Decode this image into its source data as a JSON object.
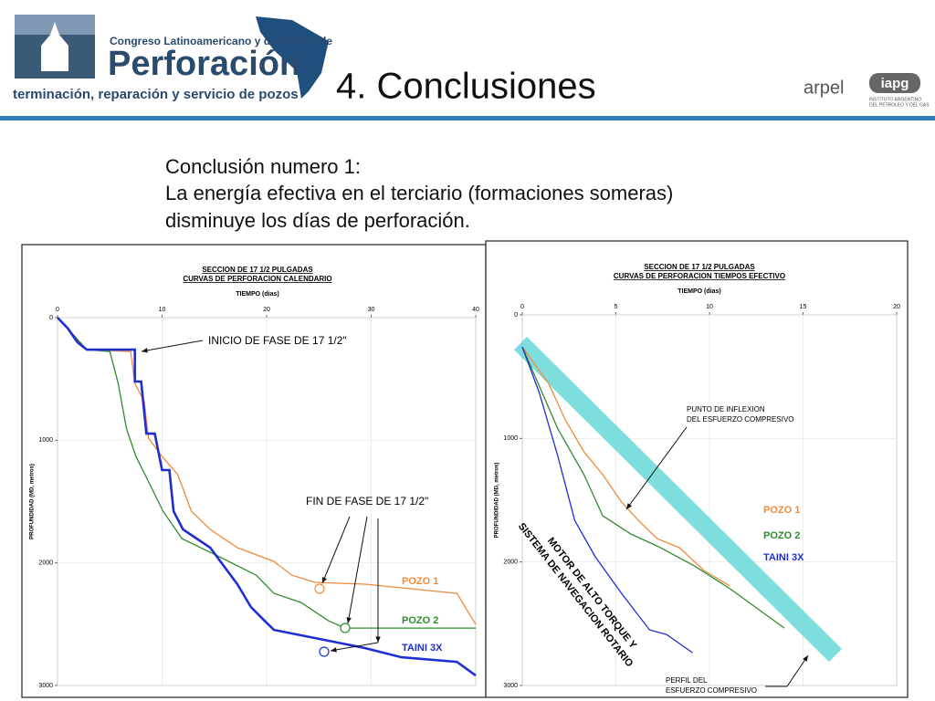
{
  "slide": {
    "congress": "Congreso Latinoamericano y del Caribe de",
    "brand": "Perforación",
    "tagline": "terminación, reparación y servicio de pozos",
    "heading": "4. Conclusiones",
    "logo1": "arpel",
    "logo2": "iapg",
    "logo2_sub1": "INSTITUTO ARGENTINO",
    "logo2_sub2": "DEL PETROLEO Y DEL GAS",
    "body": [
      "Conclusión numero 1:",
      "La energía efectiva en el terciario (formaciones someras)",
      "disminuye los días de perforación."
    ]
  },
  "chart_data": [
    {
      "type": "line",
      "title": "SECCION DE 17 1/2 PULGADAS",
      "subtitle": "CURVAS DE PERFORACION CALENDARIO",
      "x_label": "TIEMPO (dias)",
      "y_label": "PROFUNDIDAD (MD, metros)",
      "xlim": [
        0,
        40
      ],
      "xticks": [
        0,
        10,
        20,
        30,
        40
      ],
      "ylim": [
        0,
        3000
      ],
      "yticks": [
        0,
        1000,
        2000,
        3000
      ],
      "y_inverted": true,
      "grid": true,
      "annotations": [
        "INICIO DE FASE DE 17 1/2\"",
        "FIN DE FASE DE 17 1/2\""
      ],
      "series": [
        {
          "name": "POZO 1",
          "color": "#f08a3c",
          "x": [
            0,
            2.8,
            7.0,
            7.4,
            8.3,
            8.7,
            10.0,
            11.5,
            12.8,
            14.6,
            17.2,
            20.7,
            22.4,
            24.6,
            29.4,
            38.2,
            40
          ],
          "values": [
            0,
            261,
            276,
            536,
            685,
            983,
            1132,
            1281,
            1579,
            1727,
            1876,
            1988,
            2100,
            2159,
            2174,
            2249,
            2502
          ]
        },
        {
          "name": "POZO 2",
          "color": "#2e8b2e",
          "x": [
            0,
            2.8,
            5.0,
            5.8,
            6.6,
            7.5,
            8.8,
            10.1,
            11.9,
            15.5,
            19.0,
            20.7,
            23.3,
            25.9,
            27.5,
            40
          ],
          "values": [
            0,
            261,
            276,
            536,
            908,
            1132,
            1355,
            1579,
            1802,
            1951,
            2100,
            2249,
            2323,
            2472,
            2532,
            2532
          ]
        },
        {
          "name": "TAINI 3X",
          "color": "#1f2fd0",
          "x": [
            0,
            1.0,
            1.9,
            2.8,
            7.4,
            7.4,
            8.0,
            8.5,
            9.3,
            10.0,
            10.7,
            11.1,
            12.0,
            14.6,
            17.2,
            18.5,
            19.8,
            20.7,
            25.1,
            29.4,
            32.9,
            38.2,
            40
          ],
          "values": [
            0,
            89,
            201,
            261,
            261,
            521,
            521,
            946,
            946,
            1243,
            1243,
            1579,
            1727,
            1876,
            2174,
            2360,
            2472,
            2547,
            2621,
            2695,
            2770,
            2807,
            2919
          ]
        }
      ]
    },
    {
      "type": "line",
      "title": "SECCION DE 17 1/2 PULGADAS",
      "subtitle": "CURVAS DE PERFORACION TIEMPOS EFECTIVO",
      "x_label": "TIEMPO (dias)",
      "y_label": "PROFUNDIDAD (MD, metros)",
      "xlim": [
        0,
        20
      ],
      "xticks": [
        0,
        5,
        10,
        15,
        20
      ],
      "ylim": [
        0,
        3000
      ],
      "yticks": [
        0,
        1000,
        2000,
        3000
      ],
      "y_inverted": true,
      "grid": true,
      "annotations": [
        "PUNTO DE INFLEXION",
        "DEL ESFUERZO COMPRESIVO",
        "MOTOR DE ALTO TORQUE Y",
        "SISTEMA DE NAVEGACION ROTARIO",
        "PERFIL DEL",
        "ESFUERZO COMPRESIVO"
      ],
      "series": [
        {
          "name": "POZO 1",
          "color": "#f08a3c",
          "x": [
            0,
            1.4,
            2.3,
            3.3,
            4.3,
            5.3,
            6.2,
            7.2,
            8.4,
            9.7,
            11.1
          ],
          "values": [
            259,
            554,
            850,
            1109,
            1293,
            1515,
            1663,
            1811,
            1885,
            2069,
            2195
          ]
        },
        {
          "name": "POZO 2",
          "color": "#2e8b2e",
          "x": [
            0,
            1.9,
            3.3,
            4.3,
            5.8,
            7.2,
            9.2,
            11.1,
            14.0
          ],
          "values": [
            259,
            924,
            1293,
            1626,
            1774,
            1870,
            2033,
            2217,
            2535
          ]
        },
        {
          "name": "TAINI 3X",
          "color": "#1f2fd0",
          "x": [
            0,
            0.9,
            1.9,
            2.8,
            3.9,
            5.3,
            6.8,
            7.7,
            9.1
          ],
          "values": [
            259,
            628,
            1146,
            1663,
            1959,
            2254,
            2550,
            2587,
            2735
          ]
        }
      ]
    }
  ]
}
